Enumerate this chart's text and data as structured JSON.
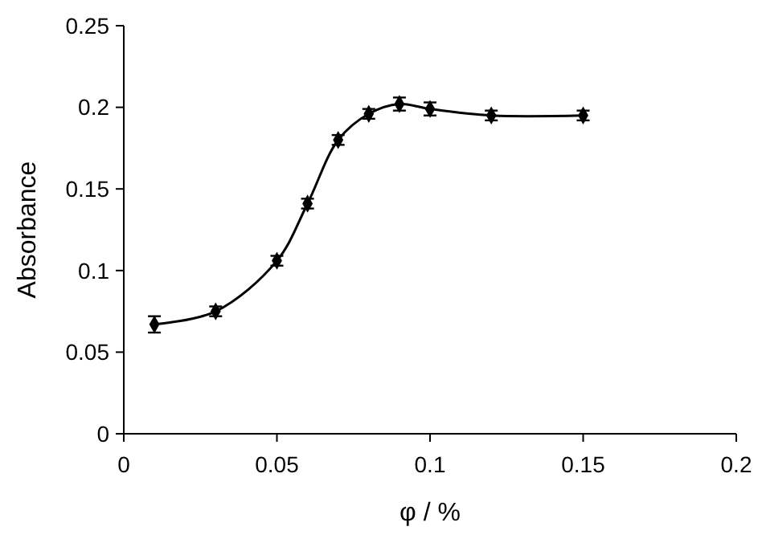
{
  "chart_data": {
    "type": "line",
    "xlabel": "φ / %",
    "ylabel": "Absorbance",
    "x": [
      0.01,
      0.03,
      0.05,
      0.06,
      0.07,
      0.08,
      0.09,
      0.1,
      0.12,
      0.15
    ],
    "series": [
      {
        "color": "#000000",
        "values": [
          0.067,
          0.075,
          0.106,
          0.141,
          0.18,
          0.196,
          0.202,
          0.199,
          0.195,
          0.195
        ],
        "errors": [
          0.005,
          0.003,
          0.003,
          0.003,
          0.003,
          0.003,
          0.004,
          0.004,
          0.003,
          0.003
        ]
      }
    ],
    "xlim": [
      0,
      0.2
    ],
    "xticks": [
      0,
      0.05,
      0.1,
      0.15,
      0.2
    ],
    "ylim": [
      0,
      0.25
    ],
    "yticks": [
      0,
      0.05,
      0.1,
      0.15,
      0.2,
      0.25
    ],
    "marker": "diamond",
    "line_style": "solid",
    "grid": false
  }
}
